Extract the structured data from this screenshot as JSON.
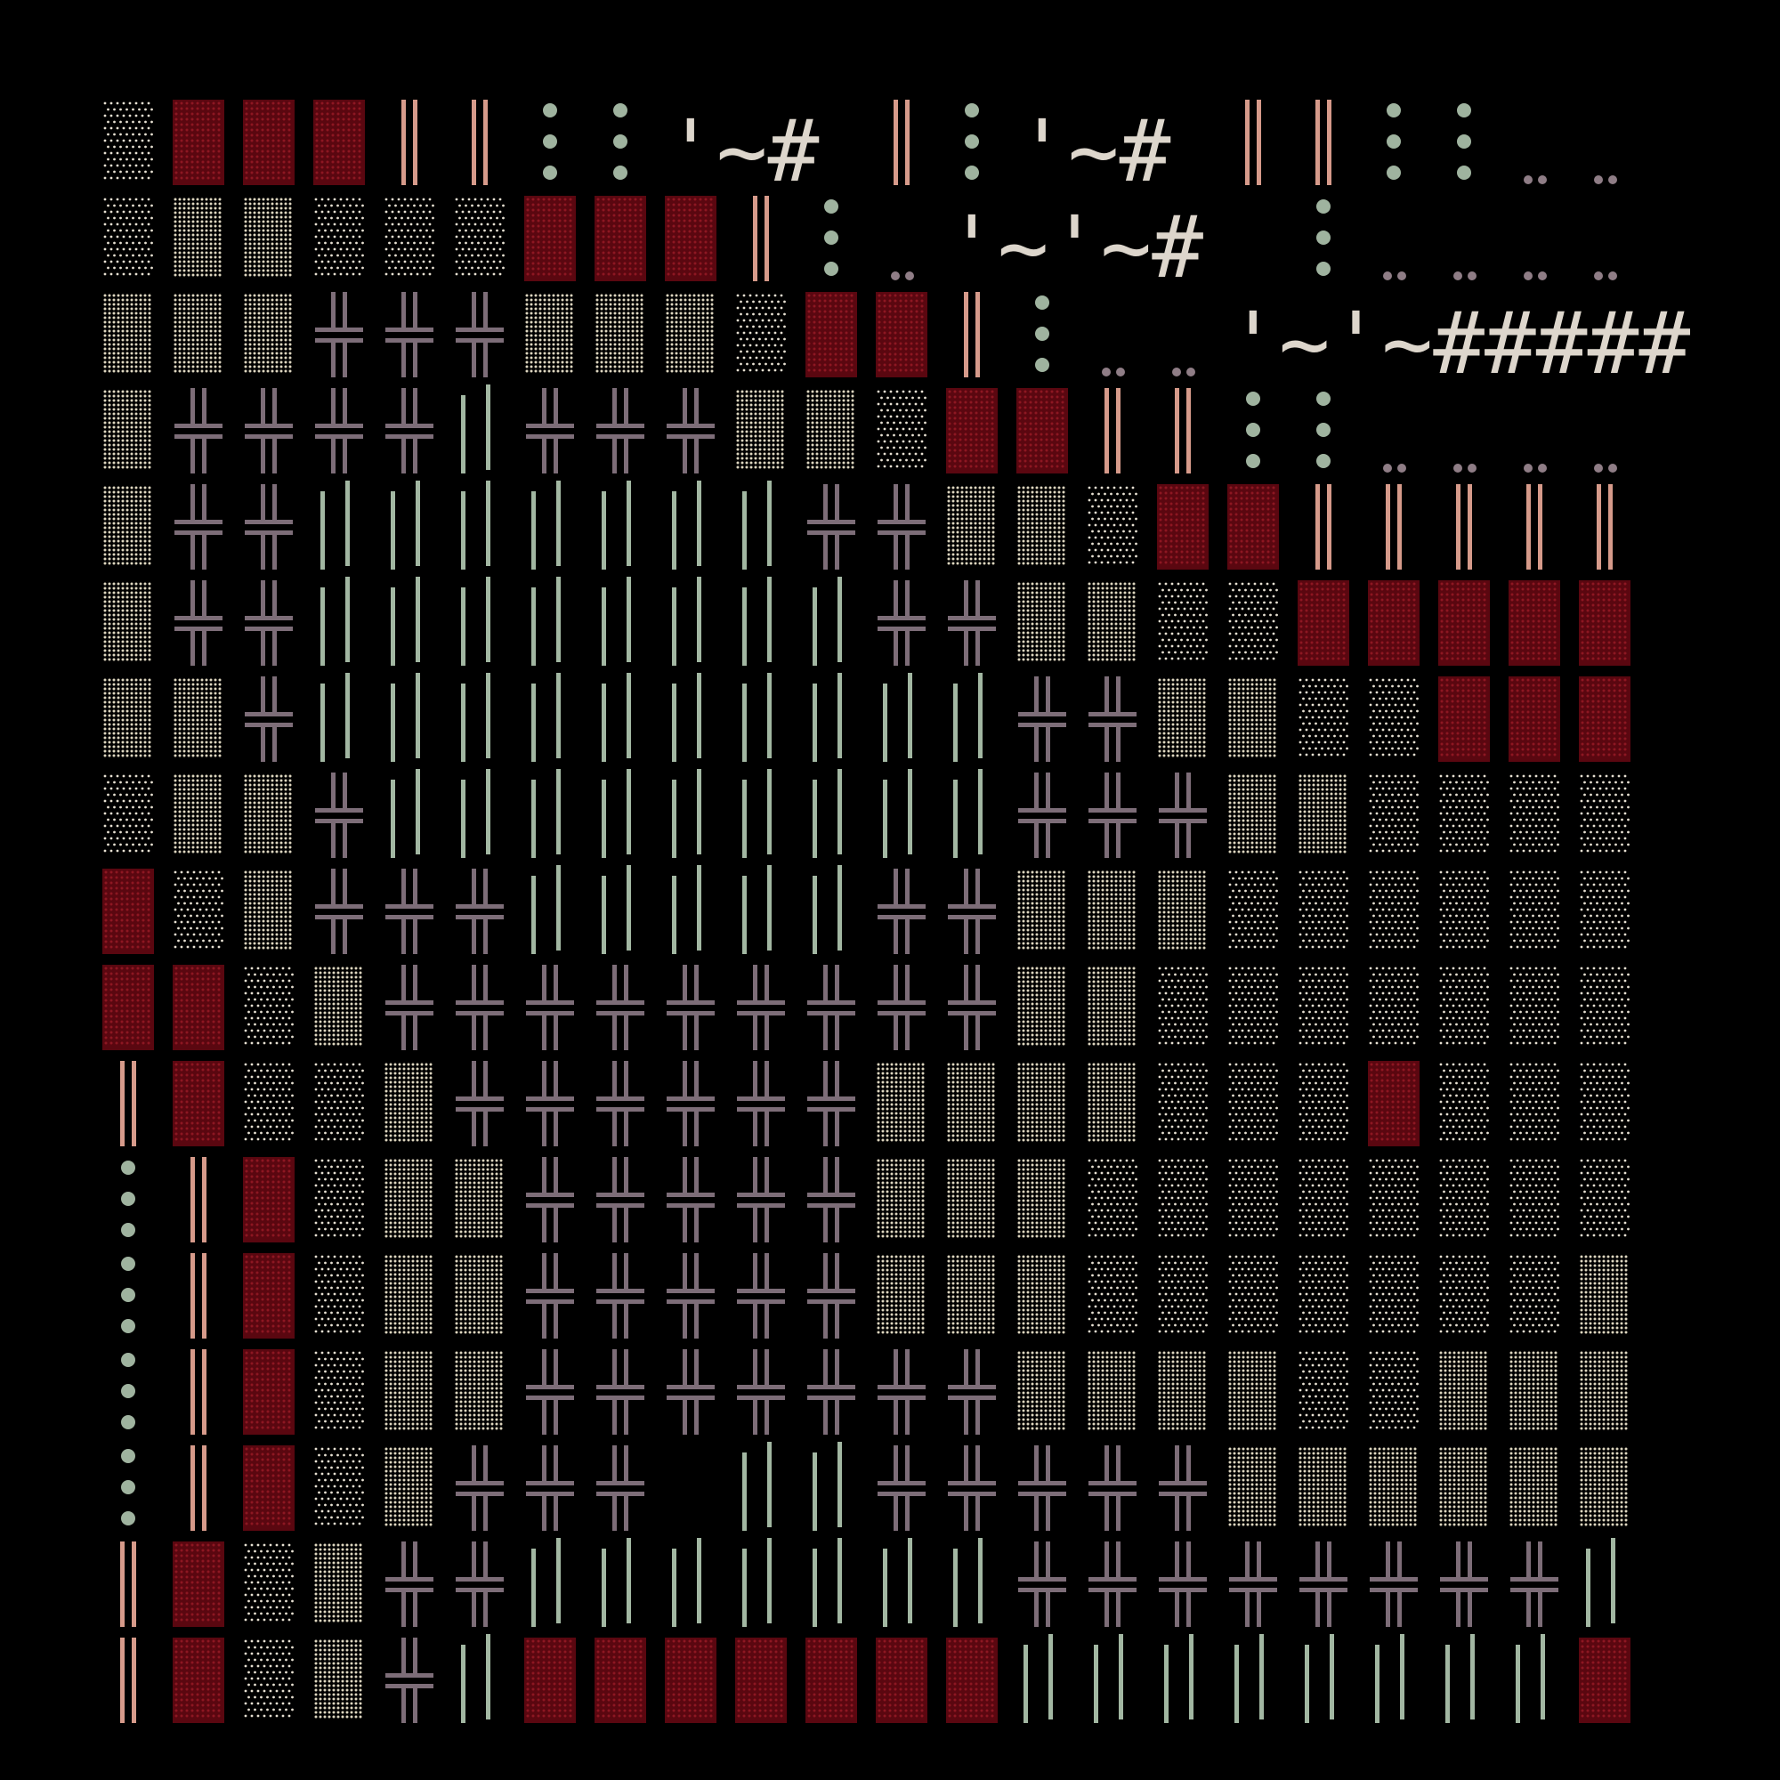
{
  "palette": {
    "background": "#000000",
    "dots": "#e7e0d2",
    "dense_dots": "#ddd6bf",
    "block_fill": "#5a0710",
    "block_dots": "#8d1722",
    "double_bar": "#d69a8a",
    "green_dot": "#9fb39f",
    "green_bar": "#a2b7a2",
    "cross": "#7d6d78",
    "small_dot": "#8f7d86",
    "text": "#ddd6cc"
  },
  "glyph_legend": {
    "s": "sparse-dot-tile",
    "d": "dense-dot-tile",
    "R": "red-dotted-block",
    "P": "pink-double-bar",
    "G": "green-vertical-dots",
    "+": "cross-glyph",
    "|": "green-bar-pair",
    ".": "small-dot-pair",
    "_": "empty"
  },
  "rows": [
    "sRRRPPGG.~#PG.~#PPGG...",
    "sddsssRRRPG.~~#PGG.....",
    "ddd+++dddsRRPG..~~#####",
    "d++++|+++ddsRRPPGG....G",
    "d++|||||||++ddsRRPPPPPP",
    "d++||||||||++ddssRRRRRR",
    "dd+||||||||||++ddssRRRR",
    "sdd+|||||||||+++ddssssss",
    "Rsd+++|||||++dddsssssss",
    "RRsd+++++++++ddssssssss",
    "PRssd++++++ddddsssRssss",
    "GPRsdd+++++dddsssssssss",
    "GPRsdd+++++dddsssssssds",
    "GPRsdd+++++++ddddssddd+",
    "GPRsd+++_||+++++dddddd++",
    "PRsd++|||||||++++++++|||",
    "PRsd+|RRRRRRR||||||||RR"
  ],
  "text_runs": [
    {
      "row": 0,
      "col": 8,
      "text": "'~#"
    },
    {
      "row": 0,
      "col": 13,
      "text": "'~#"
    },
    {
      "row": 1,
      "col": 12,
      "text": "'~'~#"
    },
    {
      "row": 2,
      "col": 16,
      "text": "'~'~#####"
    }
  ]
}
